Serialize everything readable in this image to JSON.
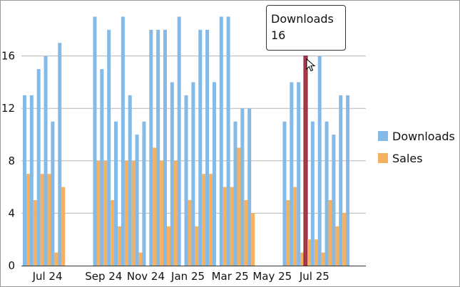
{
  "chart_data": {
    "type": "bar",
    "x_labels": [
      "Jul 24",
      "Sep 24",
      "Nov 24",
      "Jan 25",
      "Mar 25",
      "May 25",
      "Jul 25"
    ],
    "x_label_indices": [
      3,
      11,
      17,
      23,
      29,
      35,
      41
    ],
    "ylim": [
      0,
      20
    ],
    "yticks": [
      0,
      4,
      8,
      12,
      16
    ],
    "grid": true,
    "legend_position": "right",
    "series": [
      {
        "name": "Downloads",
        "color": "#85B9E6",
        "values": [
          13,
          13,
          15,
          16,
          11,
          17,
          null,
          null,
          null,
          null,
          19,
          15,
          18,
          11,
          19,
          13,
          10,
          11,
          18,
          18,
          18,
          14,
          19,
          13,
          14,
          18,
          18,
          14,
          19,
          19,
          11,
          12,
          12,
          null,
          null,
          null,
          null,
          11,
          14,
          14,
          16,
          11,
          16,
          11,
          10,
          13,
          13
        ]
      },
      {
        "name": "Sales",
        "color": "#F5B060",
        "values": [
          7,
          5,
          7,
          7,
          1,
          6,
          null,
          null,
          null,
          null,
          8,
          8,
          5,
          3,
          8,
          8,
          1,
          null,
          9,
          8,
          3,
          8,
          null,
          5,
          3,
          7,
          7,
          null,
          6,
          6,
          9,
          5,
          4,
          null,
          null,
          null,
          null,
          5,
          6,
          1,
          2,
          2,
          1,
          5,
          3,
          4,
          null
        ]
      }
    ],
    "highlight": {
      "series": "Downloads",
      "index": 40,
      "color": "#A93A4A"
    }
  },
  "tooltip": {
    "series": "Downloads",
    "value": "16"
  },
  "legend": [
    {
      "label": "Downloads",
      "color": "#85B9E6"
    },
    {
      "label": "Sales",
      "color": "#F5B060"
    }
  ]
}
